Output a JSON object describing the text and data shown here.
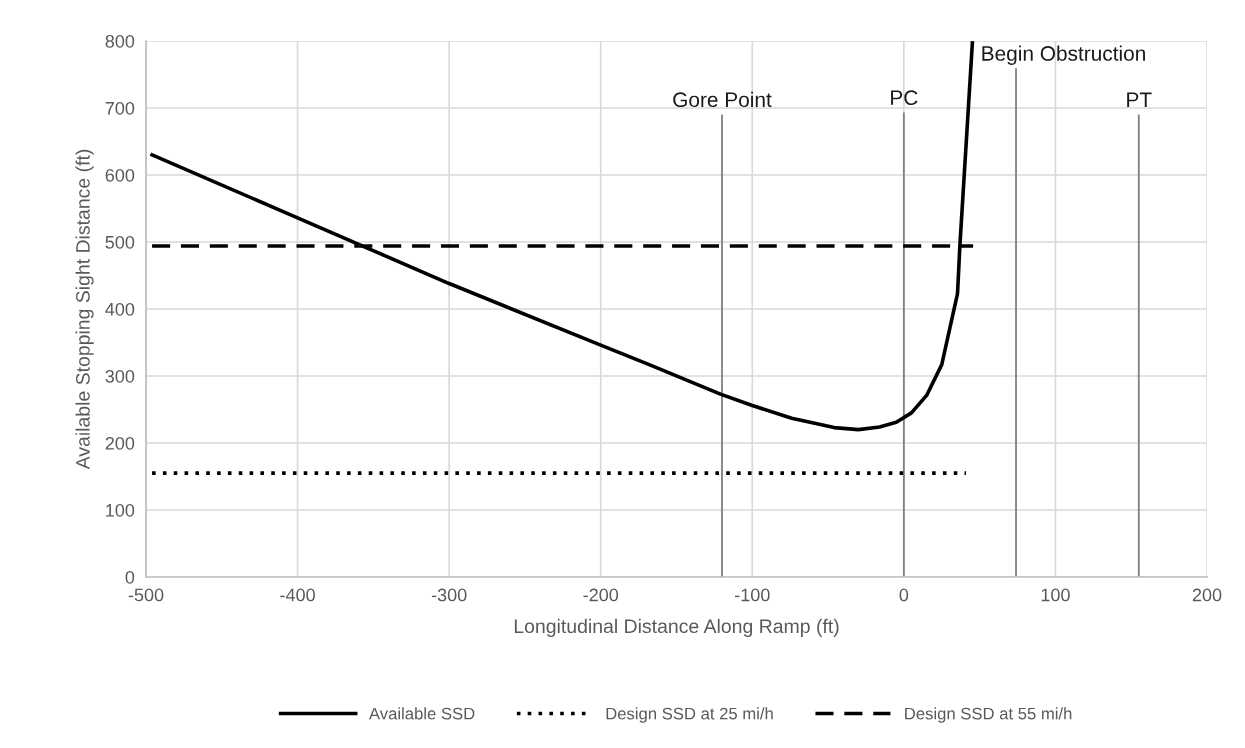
{
  "chart_data": {
    "type": "line",
    "xlabel": "Longitudinal Distance Along Ramp (ft)",
    "ylabel": "Available Stopping Sight Distance (ft)",
    "xlim": [
      -500,
      200
    ],
    "xticks": [
      -500,
      -400,
      -300,
      -200,
      -100,
      0,
      100,
      200
    ],
    "ylim": [
      0,
      800
    ],
    "yticks": [
      0,
      100,
      200,
      300,
      400,
      500,
      600,
      700,
      800
    ],
    "grid": true,
    "legend": "bottom",
    "marker": "none",
    "series": [
      {
        "name": "Available SSD",
        "color": "#000000",
        "line_style": "solid",
        "x": [
          -496,
          -400,
          -300,
          -200,
          -168,
          -121,
          -100,
          -74,
          -46,
          -30,
          -16,
          -5,
          5,
          15,
          25,
          35.4,
          37,
          45.2
        ],
        "values": [
          630,
          536,
          438,
          346,
          317,
          273,
          256,
          237,
          223,
          220,
          224,
          231,
          245,
          271,
          317,
          423,
          496,
          797
        ]
      },
      {
        "name": "Design SSD at 25 mi/h",
        "color": "#000000",
        "line_style": "dotted",
        "x": [
          -496,
          41
        ],
        "values": [
          155,
          155
        ]
      },
      {
        "name": "Design SSD at 55 mi/h",
        "color": "#000000",
        "line_style": "dashed",
        "x": [
          -496,
          45.7
        ],
        "values": [
          494,
          494
        ]
      },
      {
        "color": "#7f7f7f",
        "line_style": "solid",
        "x": [
          -120,
          -120
        ],
        "values": [
          0,
          689
        ]
      },
      {
        "color": "#7f7f7f",
        "line_style": "solid",
        "x": [
          0,
          0
        ],
        "values": [
          0,
          692
        ]
      },
      {
        "color": "#7f7f7f",
        "line_style": "solid",
        "x": [
          74,
          74
        ],
        "values": [
          0,
          758
        ]
      },
      {
        "color": "#7f7f7f",
        "line_style": "solid",
        "x": [
          155,
          155
        ],
        "values": [
          0,
          689
        ]
      }
    ],
    "annotations": [
      {
        "text": "Gore Point",
        "x": -120,
        "y": 689
      },
      {
        "text": "PC",
        "x": 0,
        "y": 692
      },
      {
        "text": "Begin Obstruction",
        "x": 74,
        "y": 758
      },
      {
        "text": "PT",
        "x": 155,
        "y": 689
      }
    ]
  }
}
